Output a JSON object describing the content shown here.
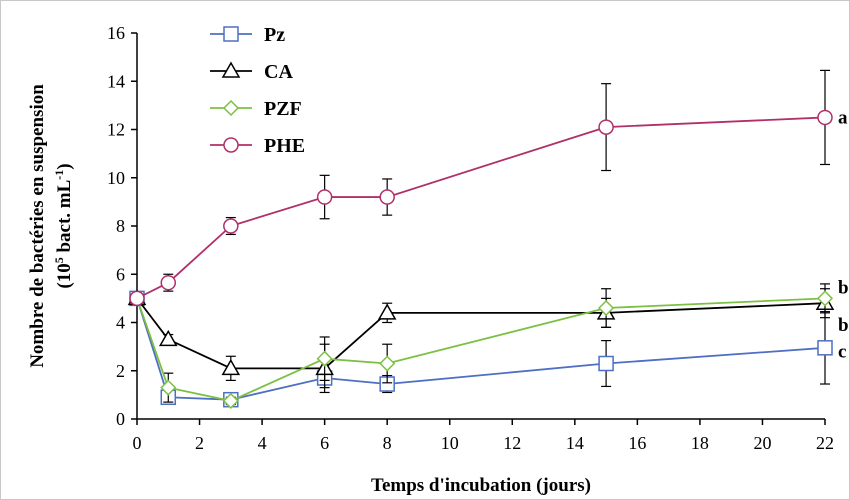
{
  "chart_data": {
    "type": "line",
    "xlabel": "Temps d'incubation (jours)",
    "ylabel": "Nombre de bactéries en suspension",
    "ylabel_unit": "(10^5 bact. mL^-1)",
    "ylabel_unit_parts": {
      "open": "(10",
      "exp1": "5",
      "mid": " bact. mL",
      "exp2": "-1",
      "close": ")"
    },
    "xlim": [
      0,
      22
    ],
    "ylim": [
      0,
      16
    ],
    "xticks": [
      0,
      2,
      4,
      6,
      8,
      10,
      12,
      14,
      16,
      18,
      20,
      22
    ],
    "yticks": [
      0,
      2,
      4,
      6,
      8,
      10,
      12,
      14,
      16
    ],
    "grid": false,
    "legend_position": "top-left",
    "x": [
      0,
      1,
      3,
      6,
      8,
      15,
      22
    ],
    "series": [
      {
        "name": "Pz",
        "color": "#4f6fc4",
        "marker": "square",
        "values": [
          5.0,
          0.9,
          0.8,
          1.7,
          1.45,
          2.3,
          2.95
        ],
        "errors": [
          0.15,
          0.2,
          0.15,
          0.4,
          0.35,
          0.95,
          1.5
        ]
      },
      {
        "name": "CA",
        "color": "#000000",
        "marker": "triangle",
        "values": [
          5.0,
          3.3,
          2.1,
          2.1,
          4.4,
          4.4,
          4.8
        ],
        "errors": [
          0.15,
          0.2,
          0.5,
          1.0,
          0.4,
          0.6,
          0.6
        ]
      },
      {
        "name": "PZF",
        "color": "#7cc043",
        "marker": "diamond",
        "values": [
          5.0,
          1.3,
          0.75,
          2.5,
          2.3,
          4.6,
          5.0
        ],
        "errors": [
          0.15,
          0.6,
          0.15,
          0.9,
          0.8,
          0.8,
          0.6
        ]
      },
      {
        "name": "PHE",
        "color": "#b0306a",
        "marker": "circle",
        "values": [
          5.0,
          5.65,
          8.0,
          9.2,
          9.2,
          12.1,
          12.5
        ],
        "errors": [
          0.15,
          0.35,
          0.35,
          0.9,
          0.75,
          1.8,
          1.95
        ]
      }
    ],
    "group_labels": [
      {
        "text": "a",
        "y": 12.5
      },
      {
        "text": "b",
        "y": 5.45
      },
      {
        "text": "b",
        "y": 3.9
      },
      {
        "text": "c",
        "y": 2.8
      }
    ]
  }
}
